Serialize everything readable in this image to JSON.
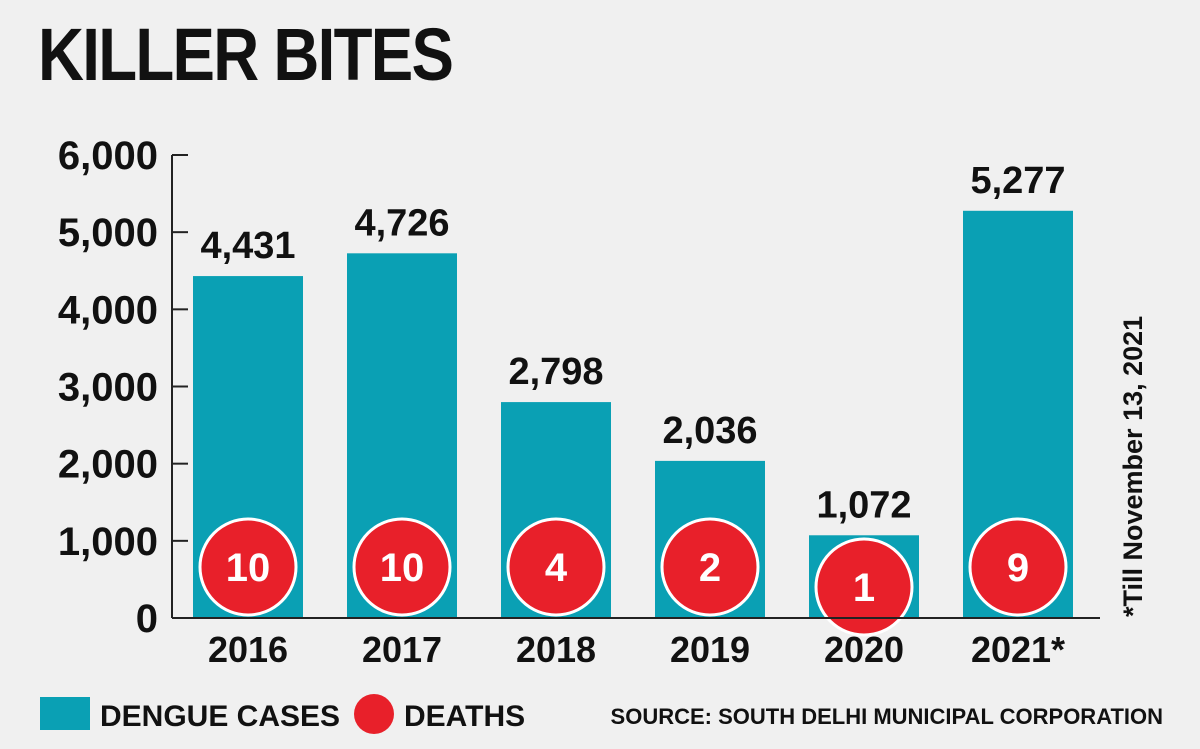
{
  "chart_data": {
    "type": "bar",
    "title": "KILLER BITES",
    "categories": [
      "2016",
      "2017",
      "2018",
      "2019",
      "2020",
      "2021*"
    ],
    "series": [
      {
        "name": "DENGUE CASES",
        "values": [
          4431,
          4726,
          2798,
          2036,
          1072,
          5277
        ],
        "color": "#0aa0b4"
      },
      {
        "name": "DEATHS",
        "values": [
          10,
          10,
          4,
          2,
          1,
          9
        ],
        "color": "#e8202a"
      }
    ],
    "value_labels": [
      "4,431",
      "4,726",
      "2,798",
      "2,036",
      "1,072",
      "5,277"
    ],
    "death_labels": [
      "10",
      "10",
      "4",
      "2",
      "1",
      "9"
    ],
    "yticks": [
      "0",
      "1,000",
      "2,000",
      "3,000",
      "4,000",
      "5,000",
      "6,000"
    ],
    "ylim": [
      0,
      6000
    ],
    "xlabel": "",
    "ylabel": "",
    "grid": false,
    "legend_position": "bottom-left",
    "note": "*Till November 13, 2021",
    "source": "SOURCE: SOUTH DELHI MUNICIPAL CORPORATION"
  }
}
